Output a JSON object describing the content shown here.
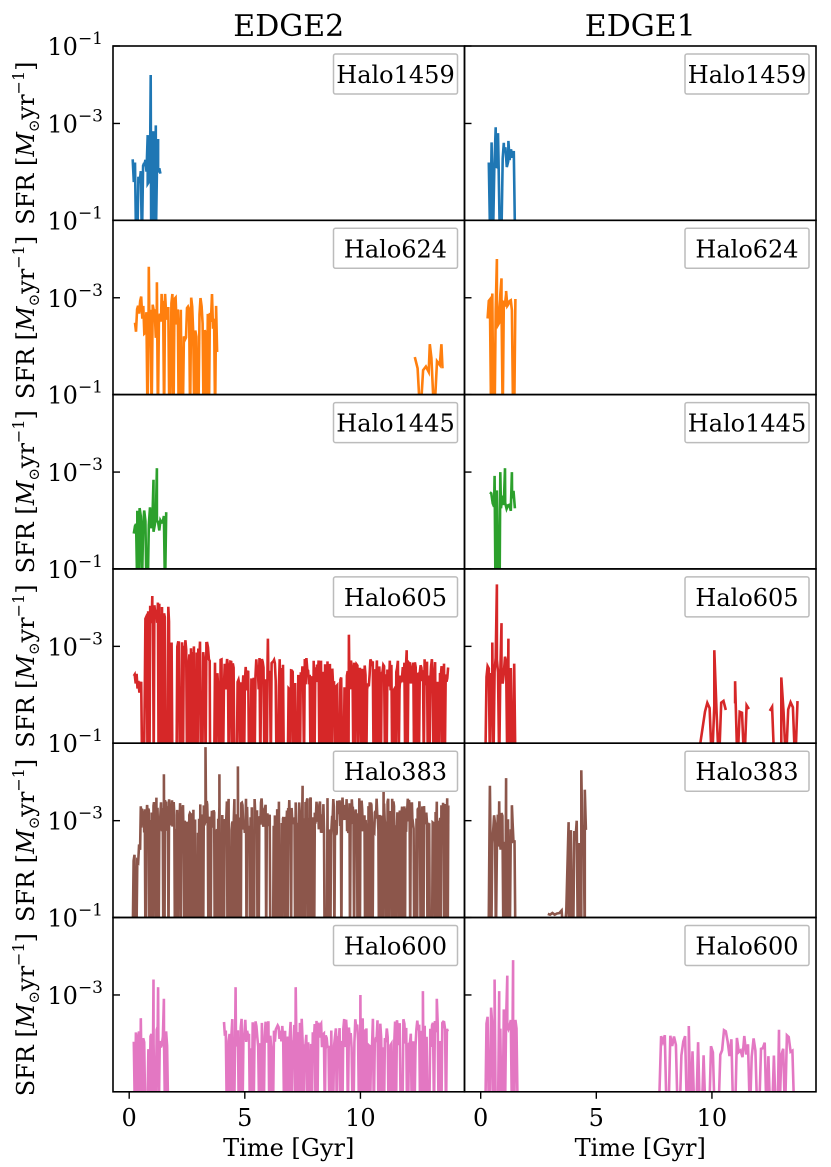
{
  "columns": [
    "EDGE2",
    "EDGE1"
  ],
  "xlabel": "Time [Gyr]",
  "ylabel_parts": {
    "pre": "SFR [",
    "msun": "M",
    "sun_sub": "⊙",
    "unit": "yr",
    "exp": "−1",
    "post": "]"
  },
  "colors": {
    "Halo1459": "#1f77b4",
    "Halo624": "#ff7f0e",
    "Halo1445": "#2ca02c",
    "Halo605": "#d62728",
    "Halo383": "#8c564b",
    "Halo600": "#e377c2"
  },
  "chart_data": {
    "type": "line",
    "layout": "6 rows x 2 columns, shared axes",
    "xlim": [
      -0.7,
      14.5
    ],
    "ylim_log10": [
      -5.5,
      -1
    ],
    "yscale": "log",
    "xticks": [
      0,
      5,
      10
    ],
    "xtick_labels": [
      "0",
      "5",
      "10"
    ],
    "ytick_labels": [
      {
        "base": "10",
        "exp": "−1",
        "value": 0.1
      },
      {
        "base": "10",
        "exp": "−3",
        "value": 0.001
      }
    ],
    "rows": [
      {
        "halo": "Halo1459",
        "EDGE2": {
          "segments": [
            [
              0.15,
              1.35,
              -5.0,
              -3.8,
              0.05
            ]
          ],
          "peaks": [
            [
              0.65,
              -4.1
            ],
            [
              0.8,
              -3.3
            ],
            [
              0.93,
              -1.75
            ],
            [
              1.05,
              -3.2
            ],
            [
              1.15,
              -3.05
            ],
            [
              1.25,
              -3.4
            ]
          ]
        },
        "EDGE1": {
          "segments": [
            [
              0.35,
              1.5,
              -4.6,
              -3.4,
              0.06
            ]
          ],
          "peaks": [
            [
              0.65,
              -3.1
            ],
            [
              0.75,
              -3.25
            ],
            [
              1.0,
              -3.5
            ],
            [
              1.2,
              -3.45
            ]
          ]
        }
      },
      {
        "halo": "Halo624",
        "EDGE2": {
          "segments": [
            [
              0.25,
              3.8,
              -4.8,
              -2.9,
              0.045
            ],
            [
              12.35,
              13.65,
              -5.2,
              -4.5,
              0.12
            ]
          ],
          "peaks": [
            [
              0.85,
              -2.2
            ],
            [
              1.2,
              -2.6
            ],
            [
              1.4,
              -2.9
            ],
            [
              2.1,
              -3.3
            ],
            [
              3.3,
              -3.9
            ],
            [
              3.8,
              -4.4
            ],
            [
              13.0,
              -4.2
            ],
            [
              13.5,
              -4.2
            ]
          ]
        },
        "EDGE1": {
          "segments": [
            [
              0.3,
              1.5,
              -4.2,
              -2.8,
              0.05
            ]
          ],
          "peaks": [
            [
              0.7,
              -2.0
            ],
            [
              0.9,
              -2.5
            ],
            [
              1.1,
              -2.9
            ]
          ]
        }
      },
      {
        "halo": "Halo1445",
        "EDGE2": {
          "segments": [
            [
              0.2,
              1.6,
              -5.0,
              -3.9,
              0.05
            ]
          ],
          "peaks": [
            [
              0.35,
              -4.0
            ],
            [
              1.05,
              -3.2
            ],
            [
              1.2,
              -2.9
            ],
            [
              1.45,
              -4.3
            ]
          ]
        },
        "EDGE1": {
          "segments": [
            [
              0.4,
              1.5,
              -4.5,
              -3.4,
              0.06
            ]
          ],
          "peaks": [
            [
              0.6,
              -3.1
            ],
            [
              0.85,
              -3.0
            ],
            [
              1.05,
              -2.9
            ],
            [
              1.35,
              -3.0
            ]
          ]
        }
      },
      {
        "halo": "Halo605",
        "EDGE2": {
          "segments": [
            [
              0.2,
              0.7,
              -4.6,
              -3.6,
              0.04
            ],
            [
              0.7,
              1.8,
              -2.9,
              -1.8,
              0.03
            ],
            [
              1.8,
              3.5,
              -3.9,
              -2.8,
              0.035
            ],
            [
              3.5,
              13.8,
              -4.6,
              -3.3,
              0.035
            ]
          ],
          "peaks": [
            [
              1.0,
              -1.7
            ],
            [
              1.3,
              -1.9
            ],
            [
              2.8,
              -3.0
            ],
            [
              6.0,
              -2.8
            ],
            [
              9.5,
              -2.7
            ],
            [
              12.0,
              -3.1
            ]
          ]
        },
        "EDGE1": {
          "segments": [
            [
              0.2,
              1.6,
              -4.4,
              -3.2,
              0.05
            ],
            [
              7.85,
              7.87,
              -4.8,
              -4.8,
              1
            ],
            [
              9.35,
              9.37,
              -4.8,
              -4.8,
              1
            ],
            [
              9.7,
              10.6,
              -4.9,
              -4.4,
              0.1
            ],
            [
              11.0,
              11.6,
              -4.9,
              -4.4,
              0.1
            ],
            [
              12.5,
              13.7,
              -4.9,
              -4.4,
              0.1
            ]
          ],
          "peaks": [
            [
              0.5,
              -2.9
            ],
            [
              0.7,
              -1.4
            ],
            [
              0.9,
              -2.4
            ],
            [
              1.2,
              -2.8
            ],
            [
              10.1,
              -3.1
            ],
            [
              11.0,
              -3.9
            ],
            [
              13.0,
              -3.8
            ]
          ]
        }
      },
      {
        "halo": "Halo383",
        "EDGE2": {
          "segments": [
            [
              0.15,
              0.5,
              -4.5,
              -3.6,
              0.04
            ],
            [
              0.5,
              13.8,
              -3.9,
              -2.4,
              0.025
            ]
          ],
          "peaks": [
            [
              1.5,
              -1.8
            ],
            [
              3.3,
              -1.1
            ],
            [
              3.9,
              -1.8
            ],
            [
              4.7,
              -1.6
            ],
            [
              7.5,
              -2.1
            ],
            [
              11.0,
              -2.1
            ],
            [
              13.5,
              -2.6
            ]
          ]
        },
        "EDGE1": {
          "segments": [
            [
              0.3,
              1.5,
              -4.3,
              -2.8,
              0.04
            ],
            [
              2.9,
              3.8,
              -5.5,
              -5.3,
              0.1
            ],
            [
              3.8,
              4.55,
              -4.0,
              -2.8,
              0.05
            ]
          ],
          "peaks": [
            [
              0.4,
              -2.1
            ],
            [
              0.8,
              -2.5
            ],
            [
              1.1,
              -1.9
            ],
            [
              1.35,
              -2.6
            ],
            [
              4.35,
              -1.7
            ],
            [
              4.5,
              -2.2
            ]
          ]
        }
      },
      {
        "halo": "Halo600",
        "EDGE2": {
          "segments": [
            [
              0.2,
              1.7,
              -4.8,
              -3.8,
              0.045
            ],
            [
              2.75,
              2.77,
              -4.9,
              -4.9,
              1
            ],
            [
              4.1,
              13.8,
              -4.8,
              -3.6,
              0.04
            ]
          ],
          "peaks": [
            [
              0.5,
              -3.6
            ],
            [
              1.05,
              -2.6
            ],
            [
              1.25,
              -2.8
            ],
            [
              1.5,
              -3.1
            ],
            [
              4.6,
              -2.8
            ],
            [
              7.2,
              -2.8
            ],
            [
              10.0,
              -3.0
            ],
            [
              12.7,
              -2.9
            ],
            [
              13.3,
              -3.1
            ]
          ]
        },
        "EDGE1": {
          "segments": [
            [
              0.2,
              1.6,
              -4.3,
              -3.3,
              0.05
            ],
            [
              7.7,
              7.72,
              -3.2,
              -3.2,
              1
            ],
            [
              7.8,
              13.6,
              -5.0,
              -3.9,
              0.08
            ]
          ],
          "peaks": [
            [
              0.6,
              -2.6
            ],
            [
              0.8,
              -2.9
            ],
            [
              1.15,
              -2.5
            ],
            [
              1.4,
              -2.1
            ],
            [
              9.0,
              -3.8
            ],
            [
              12.9,
              -3.9
            ]
          ]
        }
      }
    ]
  }
}
